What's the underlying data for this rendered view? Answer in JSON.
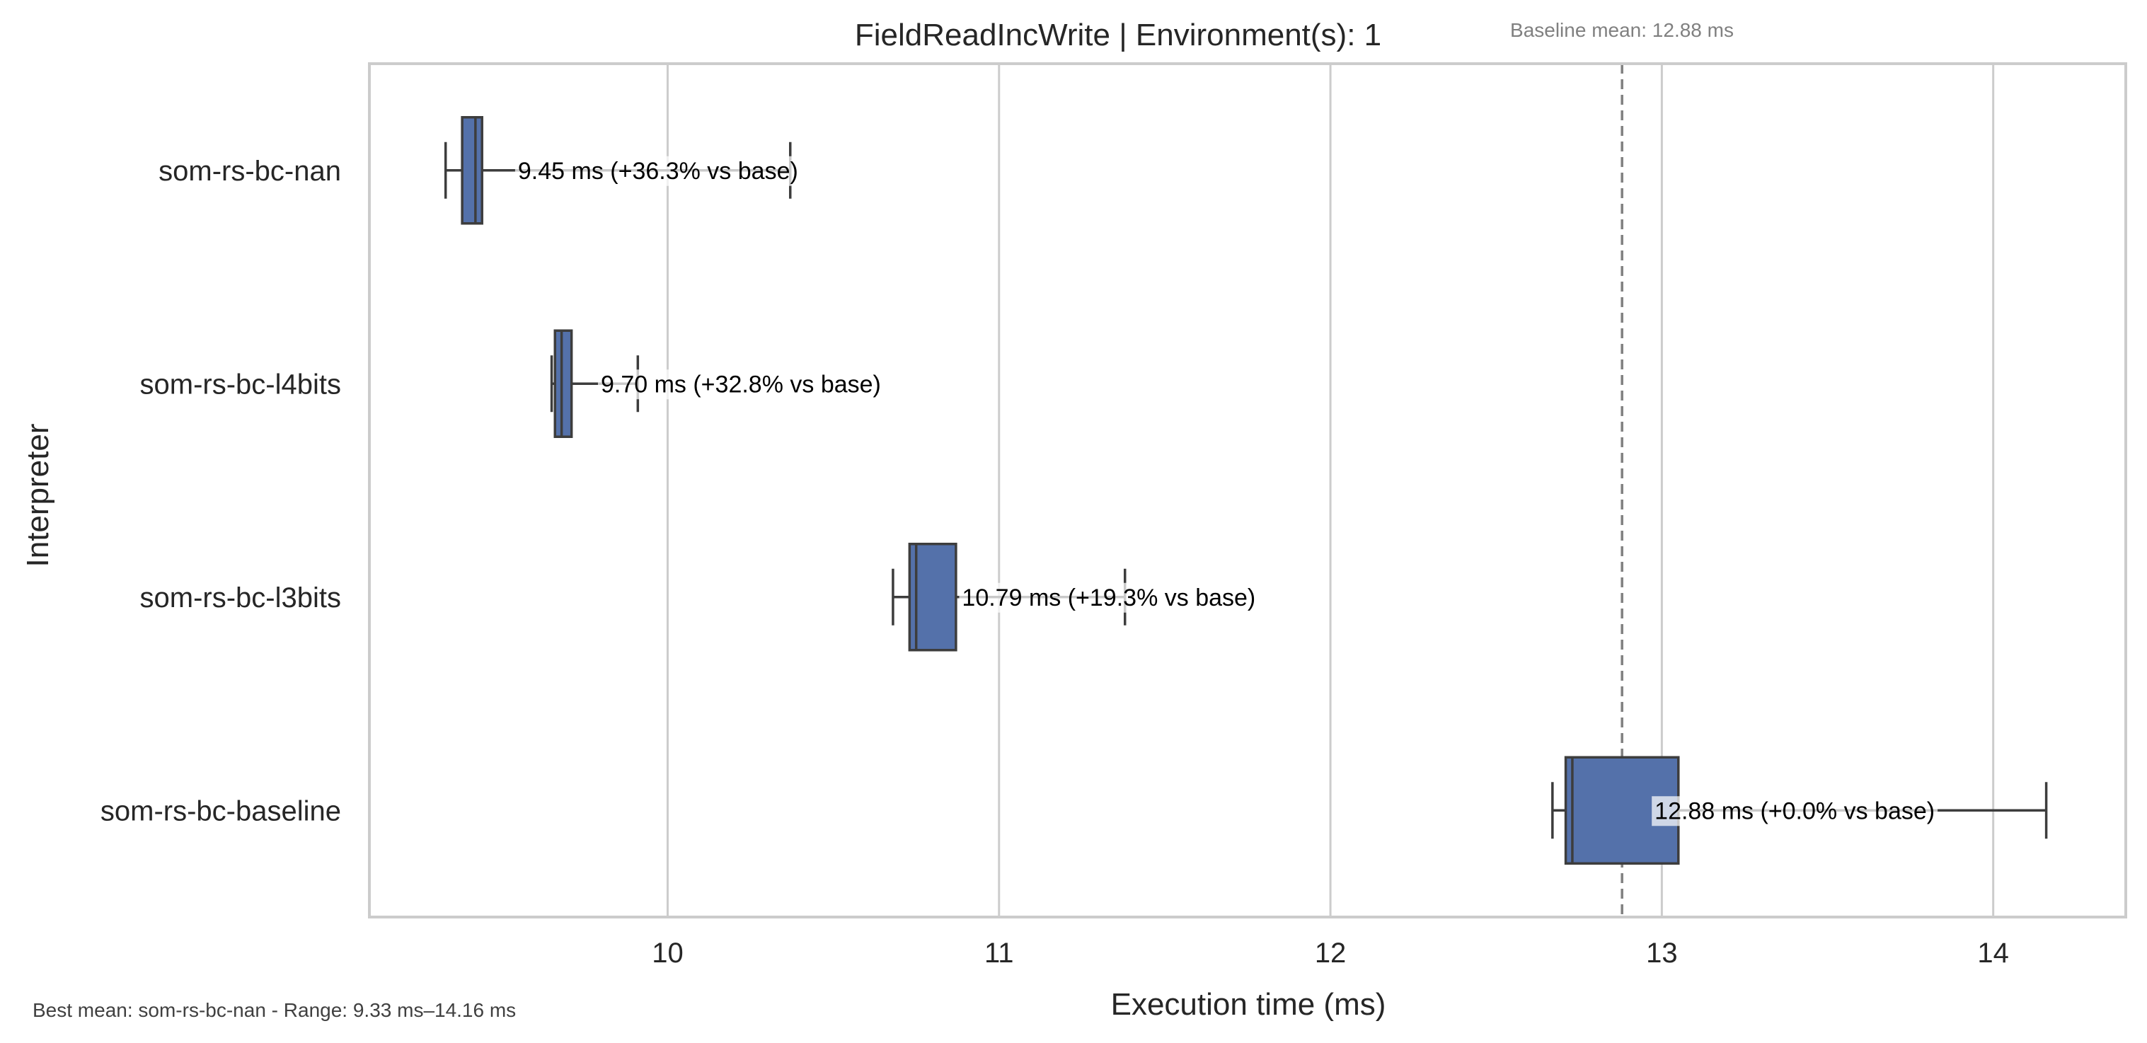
{
  "chart_data": {
    "type": "box",
    "orientation": "horizontal",
    "title": "FieldReadIncWrite | Environment(s): 1",
    "xlabel": "Execution time (ms)",
    "ylabel": "Interpreter",
    "xlim": [
      9.1,
      14.4
    ],
    "xticks": [
      10,
      11,
      12,
      13,
      14
    ],
    "grid": true,
    "categories": [
      "som-rs-bc-nan",
      "som-rs-bc-l4bits",
      "som-rs-bc-l3bits",
      "som-rs-bc-baseline"
    ],
    "boxes": [
      {
        "name": "som-rs-bc-nan",
        "whisker_low": 9.33,
        "q1": 9.38,
        "median": 9.42,
        "q3": 9.44,
        "whisker_high": 10.37,
        "mean": 9.45,
        "label": "9.45 ms  (+36.3% vs base)"
      },
      {
        "name": "som-rs-bc-l4bits",
        "whisker_low": 9.65,
        "q1": 9.66,
        "median": 9.68,
        "q3": 9.71,
        "whisker_high": 9.91,
        "mean": 9.7,
        "label": "9.70 ms  (+32.8% vs base)"
      },
      {
        "name": "som-rs-bc-l3bits",
        "whisker_low": 10.68,
        "q1": 10.73,
        "median": 10.75,
        "q3": 10.87,
        "whisker_high": 11.38,
        "mean": 10.79,
        "label": "10.79 ms  (+19.3% vs base)"
      },
      {
        "name": "som-rs-bc-baseline",
        "whisker_low": 12.67,
        "q1": 12.71,
        "median": 12.73,
        "q3": 13.05,
        "whisker_high": 14.16,
        "mean": 12.88,
        "label": "12.88 ms  (+0.0% vs base)"
      }
    ],
    "baseline": {
      "value": 12.88,
      "label": "Baseline mean: 12.88 ms"
    },
    "footnote": "Best mean: som-rs-bc-nan - Range: 9.33 ms–14.16 ms",
    "colors": {
      "box": "#5471aa",
      "edge": "#3d3d3d",
      "grid": "#cccccc",
      "baseline": "#808080"
    }
  }
}
